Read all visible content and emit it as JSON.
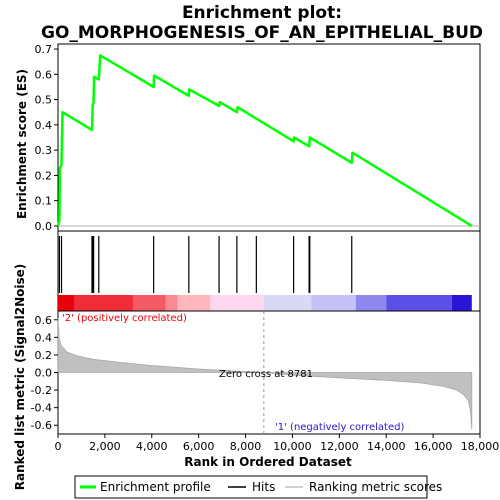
{
  "chart_data": {
    "type": "line",
    "title_line1": "Enrichment plot:",
    "title_line2": "GO_MORPHOGENESIS_OF_AN_EPITHELIAL_BUD",
    "es_panel": {
      "ylabel": "Enrichment score (ES)",
      "ylim": [
        -0.02,
        0.72
      ],
      "yticks": [
        "0.0",
        "0.1",
        "0.2",
        "0.3",
        "0.4",
        "0.5",
        "0.6",
        "0.7"
      ],
      "series": [
        {
          "name": "Enrichment profile",
          "color": "#00ff00",
          "x": [
            0,
            60,
            80,
            150,
            190,
            1450,
            1480,
            1520,
            1540,
            1740,
            1800,
            4080,
            4100,
            5580,
            5600,
            6870,
            6900,
            7630,
            7660,
            10050,
            10070,
            10710,
            10740,
            12530,
            12560,
            17650
          ],
          "y": [
            0.0,
            0.02,
            0.23,
            0.24,
            0.45,
            0.38,
            0.48,
            0.49,
            0.59,
            0.58,
            0.675,
            0.55,
            0.595,
            0.515,
            0.54,
            0.475,
            0.49,
            0.45,
            0.47,
            0.335,
            0.35,
            0.315,
            0.35,
            0.25,
            0.29,
            0.0
          ]
        }
      ]
    },
    "hits": {
      "name": "Hits",
      "positions": [
        60,
        150,
        1450,
        1480,
        1520,
        1740,
        4080,
        5580,
        6870,
        7630,
        8460,
        10050,
        10710,
        10740,
        12530
      ]
    },
    "ranking_bar": {
      "colors": [
        "#e8000a",
        "#ee2d38",
        "#f45a64",
        "#f98a92",
        "#fdb7bd",
        "#fdd7f0",
        "#d9d9f6",
        "#c4c2f6",
        "#8e87ee",
        "#5b4fe6",
        "#2a14d6"
      ],
      "stops": [
        0,
        700,
        3200,
        4600,
        5100,
        6500,
        8781,
        10800,
        12700,
        14000,
        16800,
        17650
      ]
    },
    "metric_panel": {
      "ylabel": "Ranked list metric (Signal2Noise)",
      "ylim": [
        -0.7,
        0.7
      ],
      "yticks": [
        "-0.6",
        "-0.4",
        "-0.2",
        "0.0",
        "0.2",
        "0.4",
        "0.6"
      ],
      "series": [
        {
          "name": "Ranking metric scores",
          "color": "#c0c0c0",
          "x": [
            0,
            50,
            150,
            400,
            800,
            1500,
            2500,
            4000,
            6000,
            8000,
            8781,
            10000,
            12000,
            14000,
            15500,
            16500,
            17000,
            17300,
            17500,
            17600,
            17650
          ],
          "y": [
            0.62,
            0.38,
            0.3,
            0.23,
            0.19,
            0.15,
            0.12,
            0.08,
            0.04,
            0.01,
            0.0,
            -0.03,
            -0.06,
            -0.09,
            -0.12,
            -0.16,
            -0.2,
            -0.25,
            -0.32,
            -0.45,
            -0.65
          ]
        }
      ],
      "zero_cross_label": "Zero cross at 8781",
      "zero_cross": 8781,
      "pos_label": "'2' (positively correlated)",
      "neg_label": "'1' (negatively correlated)"
    },
    "x_axis": {
      "label": "Rank in Ordered Dataset",
      "xlim": [
        0,
        18000
      ],
      "ticks": [
        0,
        2000,
        4000,
        6000,
        8000,
        10000,
        12000,
        14000,
        16000,
        18000
      ],
      "tick_labels": [
        "0",
        "2,000",
        "4,000",
        "6,000",
        "8,000",
        "10,000",
        "12,000",
        "14,000",
        "16,000",
        "18,000"
      ]
    },
    "legend": {
      "items": [
        "Enrichment profile",
        "Hits",
        "Ranking metric scores"
      ],
      "placement": "bottom"
    }
  }
}
